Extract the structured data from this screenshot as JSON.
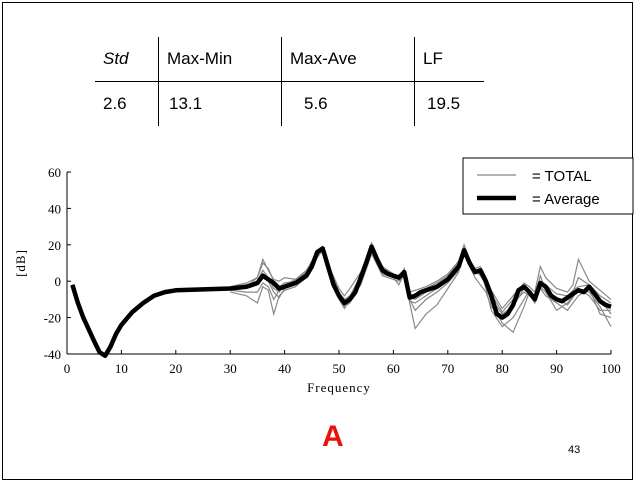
{
  "stats_table": {
    "headers": [
      "Std",
      "Max-Min",
      "Max-Ave",
      "LF"
    ],
    "values": [
      "2.6",
      "13.1",
      "5.6",
      "19.5"
    ]
  },
  "chart_data": {
    "type": "line",
    "title": "",
    "xlabel": "Frequency",
    "ylabel": "[dB]",
    "xlim": [
      0,
      100
    ],
    "ylim": [
      -40,
      60
    ],
    "xticks": [
      0,
      10,
      20,
      30,
      40,
      50,
      60,
      70,
      80,
      90,
      100
    ],
    "yticks": [
      -40,
      -20,
      0,
      20,
      40,
      60
    ],
    "grid": false,
    "legend_position": "top-right",
    "series": [
      {
        "name": "Average",
        "color": "#000000",
        "x": [
          1,
          2,
          3,
          5,
          6,
          7,
          8,
          9,
          10,
          12,
          14,
          16,
          18,
          20,
          25,
          30,
          33,
          35,
          36,
          37,
          38,
          39,
          40,
          42,
          44,
          45,
          46,
          47,
          48,
          49,
          50,
          51,
          52,
          53,
          54,
          55,
          56,
          57,
          58,
          59,
          60,
          61,
          62,
          63,
          64,
          65,
          66,
          68,
          70,
          72,
          73,
          74,
          75,
          76,
          77,
          78,
          79,
          80,
          81,
          82,
          83,
          84,
          85,
          86,
          87,
          88,
          89,
          90,
          91,
          92,
          93,
          94,
          95,
          96,
          97,
          98,
          99,
          100
        ],
        "y": [
          -2,
          -12,
          -20,
          -33,
          -39,
          -41,
          -36,
          -29,
          -24,
          -17,
          -12,
          -8,
          -6,
          -5,
          -4.5,
          -4,
          -3,
          -1,
          3,
          1,
          -1,
          -4,
          -3,
          -1,
          3,
          8,
          16,
          18,
          8,
          -2,
          -8,
          -12,
          -10,
          -6,
          2,
          10,
          19,
          12,
          6,
          4,
          3,
          2,
          5,
          -9,
          -8,
          -6,
          -5,
          -3,
          1,
          8,
          17,
          10,
          5,
          6,
          0,
          -8,
          -18,
          -20,
          -18,
          -13,
          -5,
          -3,
          -6,
          -10,
          -1,
          -3,
          -8,
          -10,
          -11,
          -9,
          -7,
          -5,
          -6,
          -3,
          -7,
          -11,
          -13,
          -14
        ]
      },
      {
        "name": "TOTAL",
        "color": "#888888",
        "members": [
          {
            "x": [
              30,
              33,
              35,
              36,
              37,
              38,
              39,
              40,
              42,
              44,
              46,
              47,
              48,
              50,
              51,
              52,
              54,
              56,
              57,
              58,
              60,
              61,
              62,
              63,
              64,
              66,
              68,
              70,
              72,
              73,
              74,
              75,
              76,
              77,
              78,
              80,
              82,
              84,
              85,
              86,
              87,
              88,
              90,
              92,
              93,
              94,
              96,
              98,
              100
            ],
            "y": [
              -4,
              -3,
              2,
              10,
              7,
              0,
              -3,
              -1,
              0,
              5,
              15,
              17,
              9,
              -6,
              -10,
              -8,
              3,
              18,
              10,
              6,
              3,
              1,
              4,
              -8,
              -7,
              -4,
              -1,
              3,
              10,
              16,
              9,
              4,
              5,
              -3,
              -7,
              -17,
              -10,
              -3,
              -5,
              -8,
              0,
              -2,
              -7,
              -8,
              -5,
              -3,
              -2,
              -8,
              -12
            ]
          },
          {
            "x": [
              30,
              33,
              35,
              36,
              37,
              38,
              39,
              40,
              42,
              44,
              46,
              47,
              48,
              50,
              51,
              52,
              54,
              56,
              57,
              58,
              60,
              61,
              62,
              63,
              64,
              66,
              68,
              70,
              72,
              73,
              74,
              75,
              76,
              77,
              78,
              80,
              82,
              84,
              85,
              86,
              87,
              88,
              90,
              92,
              93,
              94,
              96,
              98,
              100
            ],
            "y": [
              -6,
              -8,
              -12,
              -3,
              -5,
              -18,
              -8,
              -5,
              -3,
              2,
              14,
              18,
              8,
              -9,
              -14,
              -12,
              0,
              17,
              11,
              4,
              2,
              -2,
              4,
              -12,
              -26,
              -18,
              -13,
              -4,
              5,
              18,
              11,
              5,
              4,
              1,
              -12,
              -23,
              -28,
              -14,
              -6,
              -12,
              -3,
              -6,
              -16,
              -12,
              -8,
              -4,
              -6,
              -14,
              -25
            ]
          },
          {
            "x": [
              30,
              33,
              35,
              36,
              37,
              38,
              39,
              40,
              42,
              44,
              46,
              47,
              48,
              50,
              51,
              52,
              54,
              56,
              57,
              58,
              60,
              61,
              62,
              63,
              64,
              66,
              68,
              70,
              72,
              73,
              74,
              75,
              76,
              77,
              78,
              80,
              82,
              84,
              85,
              86,
              87,
              88,
              90,
              92,
              93,
              94,
              96,
              98,
              100
            ],
            "y": [
              -3,
              -1,
              2,
              12,
              6,
              1,
              0,
              2,
              1,
              6,
              16,
              19,
              9,
              -4,
              -8,
              -4,
              5,
              21,
              13,
              8,
              4,
              3,
              6,
              -6,
              -5,
              -3,
              0,
              4,
              11,
              20,
              12,
              7,
              8,
              2,
              -5,
              -15,
              -8,
              -1,
              -3,
              -6,
              8,
              2,
              -4,
              -6,
              -2,
              12,
              0,
              -5,
              -10
            ]
          },
          {
            "x": [
              30,
              33,
              35,
              36,
              37,
              38,
              39,
              40,
              42,
              44,
              46,
              47,
              48,
              50,
              51,
              52,
              54,
              56,
              57,
              58,
              60,
              61,
              62,
              63,
              64,
              66,
              68,
              70,
              72,
              73,
              74,
              75,
              76,
              77,
              78,
              80,
              82,
              84,
              85,
              86,
              87,
              88,
              90,
              92,
              93,
              94,
              96,
              98,
              100
            ],
            "y": [
              -5,
              -6,
              -6,
              -1,
              -3,
              -10,
              -5,
              -2,
              -2,
              3,
              13,
              17,
              7,
              -10,
              -15,
              -10,
              -2,
              15,
              9,
              3,
              1,
              0,
              3,
              -10,
              -16,
              -10,
              -6,
              -1,
              6,
              15,
              8,
              2,
              -2,
              -6,
              -14,
              -20,
              -12,
              -6,
              -8,
              -11,
              -4,
              -8,
              -12,
              -16,
              -12,
              -8,
              -4,
              -18,
              -20
            ]
          },
          {
            "x": [
              30,
              33,
              35,
              36,
              37,
              38,
              39,
              40,
              42,
              44,
              46,
              47,
              48,
              50,
              51,
              52,
              54,
              56,
              57,
              58,
              60,
              61,
              62,
              63,
              64,
              66,
              68,
              70,
              72,
              73,
              74,
              75,
              76,
              77,
              78,
              80,
              82,
              84,
              85,
              86,
              87,
              88,
              90,
              92,
              93,
              94,
              96,
              98,
              100
            ],
            "y": [
              -4,
              -2,
              0,
              6,
              2,
              -4,
              -6,
              -2,
              1,
              5,
              16,
              19,
              10,
              -7,
              -12,
              -9,
              1,
              19,
              12,
              5,
              2,
              2,
              7,
              -9,
              -10,
              -6,
              -3,
              2,
              9,
              19,
              10,
              6,
              3,
              -2,
              -10,
              -18,
              -14,
              -4,
              -7,
              -9,
              -2,
              -4,
              -10,
              -10,
              -6,
              2,
              -2,
              -10,
              -18
            ]
          },
          {
            "x": [
              30,
              33,
              35,
              36,
              37,
              38,
              39,
              40,
              42,
              44,
              46,
              47,
              48,
              50,
              51,
              52,
              54,
              56,
              57,
              58,
              60,
              61,
              62,
              63,
              64,
              66,
              68,
              70,
              72,
              73,
              74,
              75,
              76,
              77,
              78,
              80,
              82,
              84,
              85,
              86,
              87,
              88,
              90,
              92,
              93,
              94,
              96,
              98,
              100
            ],
            "y": [
              -5,
              -4,
              -2,
              4,
              0,
              -6,
              -9,
              -4,
              -1,
              4,
              15,
              18,
              8,
              -8,
              -13,
              -11,
              2,
              20,
              11,
              6,
              3,
              1,
              5,
              -11,
              -12,
              -8,
              -4,
              1,
              8,
              17,
              9,
              4,
              6,
              -4,
              -16,
              -25,
              -20,
              -10,
              -5,
              -9,
              3,
              -5,
              -9,
              -13,
              -9,
              -4,
              -8,
              -16,
              -16
            ]
          }
        ]
      }
    ]
  }
}
